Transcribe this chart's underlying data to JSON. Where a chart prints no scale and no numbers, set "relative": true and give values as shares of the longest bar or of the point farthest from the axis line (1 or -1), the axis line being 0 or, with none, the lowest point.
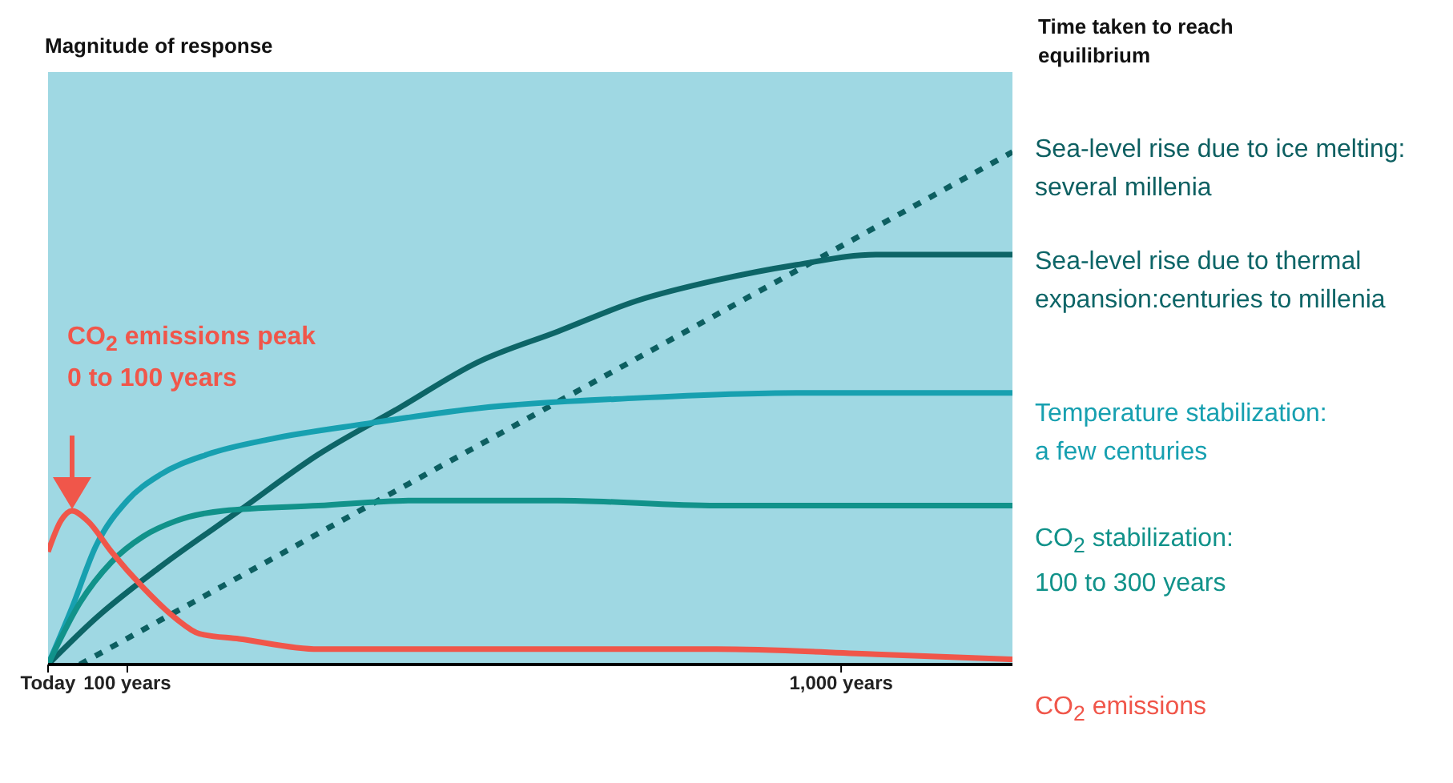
{
  "chart_data": {
    "type": "line",
    "relative": true,
    "ylabel": "Magnitude of response",
    "legend_title": "Time taken to reach\nequilibrium",
    "xlim": [
      0,
      1216
    ],
    "xticks": [
      {
        "value": 0,
        "label": "Today"
      },
      {
        "value": 100,
        "label": "100 years"
      },
      {
        "value": 1000,
        "label": "1,000 years"
      }
    ],
    "grid": false,
    "legend": "right",
    "marker": "none",
    "series": [
      {
        "name": "Sea-level rise due to ice melting:\nseveral millenia",
        "color": "#0d5f61",
        "line_style": "dotted",
        "x": [
          40,
          1216
        ],
        "values": [
          0,
          1
        ]
      },
      {
        "name": "Sea-level rise due to thermal\nexpansion:centuries to millenia",
        "color": "#0d6567",
        "line_style": "solid",
        "x": [
          0,
          60,
          141,
          241,
          341,
          442,
          542,
          643,
          743,
          843,
          944,
          1044,
          1145,
          1216
        ],
        "values": [
          0,
          0.09,
          0.19,
          0.3,
          0.41,
          0.5,
          0.59,
          0.65,
          0.71,
          0.75,
          0.78,
          0.8,
          0.8,
          0.8
        ]
      },
      {
        "name": "Temperature stabilization:\na few centuries",
        "color": "#17a0b0",
        "line_style": "solid",
        "x": [
          0,
          30,
          60,
          100,
          141,
          201,
          281,
          402,
          542,
          743,
          944,
          1216
        ],
        "values": [
          0,
          0.11,
          0.23,
          0.32,
          0.37,
          0.41,
          0.44,
          0.47,
          0.5,
          0.52,
          0.53,
          0.53
        ]
      },
      {
        "name": "CO$_{2}$ stabilization:\n100 to 300 years",
        "color": "#11928a",
        "line_style": "solid",
        "x": [
          0,
          40,
          80,
          120,
          161,
          221,
          341,
          462,
          643,
          843,
          1216
        ],
        "values": [
          0,
          0.12,
          0.2,
          0.25,
          0.28,
          0.3,
          0.31,
          0.32,
          0.32,
          0.31,
          0.31
        ]
      },
      {
        "name": "CO$_{2}$ emissions",
        "color": "#f0564a",
        "line_style": "solid",
        "x": [
          0,
          16,
          30,
          50,
          80,
          120,
          161,
          191,
          241,
          341,
          542,
          843,
          1044,
          1216
        ],
        "values": [
          0.22,
          0.28,
          0.3,
          0.28,
          0.22,
          0.15,
          0.09,
          0.06,
          0.05,
          0.03,
          0.03,
          0.03,
          0.02,
          0.01
        ]
      }
    ],
    "annotations": [
      "CO$_{2}$ emissions peak\n0 to 100 years"
    ]
  }
}
